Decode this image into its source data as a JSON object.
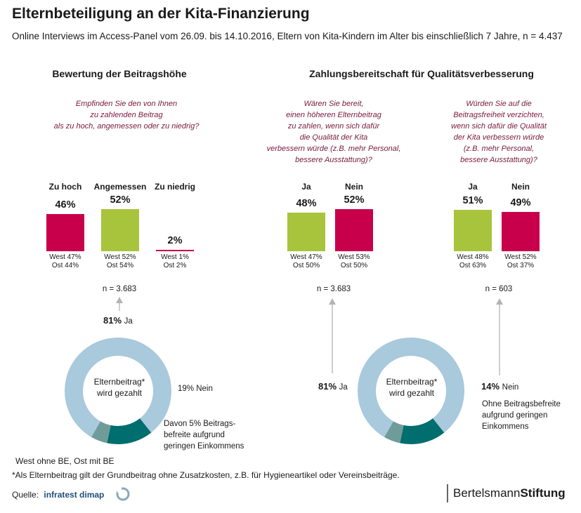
{
  "title": "Elternbeteiligung an der Kita-Finanzierung",
  "subtitle": "Online Interviews im Access-Panel vom 26.09. bis 14.10.2016, Eltern von Kita-Kindern im Alter bis einschließlich 7 Jahre, n = 4.437",
  "colors": {
    "red": "#c8004b",
    "green": "#a8c43c",
    "lightblue": "#a9c9dc",
    "teal": "#006e6e",
    "grayteal": "#6f9c98",
    "question": "#7a1a3e"
  },
  "sections": {
    "left": "Bewertung der Beitragshöhe",
    "right": "Zahlungsbereitschaft für Qualitätsverbesserung"
  },
  "questions": {
    "q1": [
      "Empfinden Sie den von Ihnen",
      "zu zahlenden Beitrag",
      "als zu hoch, angemessen oder zu niedrig?"
    ],
    "q2": [
      "Wären Sie bereit,",
      "einen höheren Elternbeitrag",
      "zu zahlen, wenn sich dafür",
      "die Qualität der Kita",
      "verbessern würde (z.B. mehr Personal,",
      "bessere Ausstattung)?"
    ],
    "q3": [
      "Würden Sie auf die",
      "Beitragsfreiheit verzichten,",
      "wenn sich dafür die Qualität",
      "der Kita verbessern würde",
      "(z.B. mehr Personal,",
      "bessere Ausstattung)?"
    ]
  },
  "chart_data": [
    {
      "type": "bar",
      "categories": [
        "Zu hoch",
        "Angemessen",
        "Zu niedrig"
      ],
      "values": [
        46,
        52,
        2
      ],
      "value_labels": [
        "46%",
        "52%",
        "2%"
      ],
      "colors": [
        "#c8004b",
        "#a8c43c",
        "#c8004b"
      ],
      "sublabels": [
        [
          "West 47%",
          "Ost 44%"
        ],
        [
          "West 52%",
          "Ost 54%"
        ],
        [
          "West 1%",
          "Ost 2%"
        ]
      ],
      "n": "n = 3.683"
    },
    {
      "type": "bar",
      "categories": [
        "Ja",
        "Nein"
      ],
      "values": [
        48,
        52
      ],
      "value_labels": [
        "48%",
        "52%"
      ],
      "colors": [
        "#a8c43c",
        "#c8004b"
      ],
      "sublabels": [
        [
          "West 47%",
          "Ost 50%"
        ],
        [
          "West 53%",
          "Ost 50%"
        ]
      ],
      "n": "n = 3.683"
    },
    {
      "type": "bar",
      "categories": [
        "Ja",
        "Nein"
      ],
      "values": [
        51,
        49
      ],
      "value_labels": [
        "51%",
        "49%"
      ],
      "colors": [
        "#a8c43c",
        "#c8004b"
      ],
      "sublabels": [
        [
          "West 48%",
          "Ost 63%"
        ],
        [
          "West 52%",
          "Ost 37%"
        ]
      ],
      "n": "n = 603"
    },
    {
      "type": "pie",
      "segments": [
        {
          "value": 81,
          "color": "#a9c9dc"
        },
        {
          "value": 14,
          "color": "#006e6e"
        },
        {
          "value": 5,
          "color": "#6f9c98"
        }
      ],
      "center": [
        "Elternbeitrag*",
        "wird gezahlt"
      ]
    }
  ],
  "donut_labels": {
    "top_pct": "81%",
    "top_ja": "Ja",
    "left_nein": "19% Nein",
    "left_befreite": [
      "Davon 5% Beitrags-",
      "befreite aufgrund",
      "geringen Einkommens"
    ],
    "mid_pct": "81%",
    "mid_ja": "Ja",
    "right_pct": "14%",
    "right_nein": "Nein",
    "right_befreite": [
      "Ohne Beitragsbefreite",
      "aufgrund geringen",
      "Einkommens"
    ]
  },
  "footer": {
    "note1": "West ohne BE, Ost mit BE",
    "note2": "*Als Elternbeitrag gilt der Grundbeitrag ohne Zusatzkosten, z.B. für Hygieneartikel oder Vereinsbeiträge.",
    "source_label": "Quelle:",
    "source_name": "infratest dimap",
    "brand_a": "Bertelsmann",
    "brand_b": "Stiftung"
  }
}
